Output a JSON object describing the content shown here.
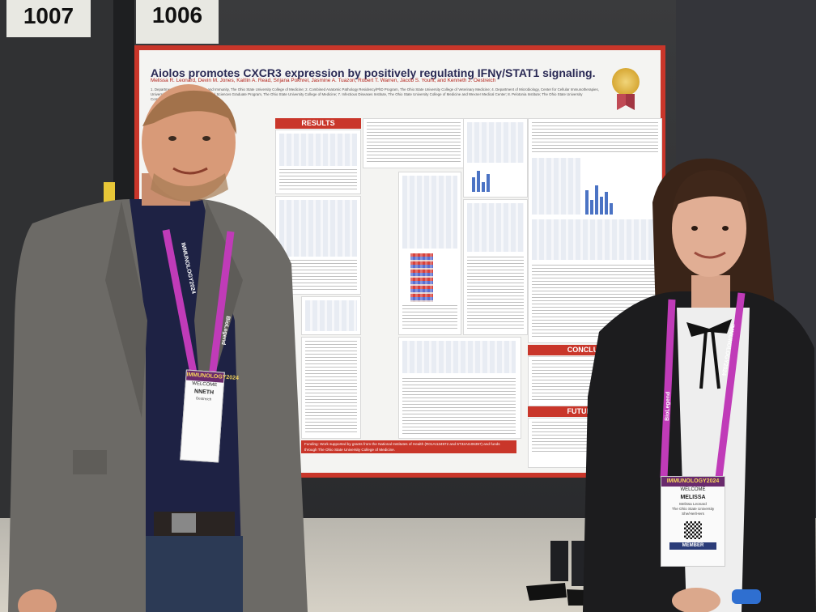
{
  "scene": {
    "board_numbers": [
      "1007",
      "1006"
    ]
  },
  "poster": {
    "title": "Aiolos promotes CXCR3 expression by positively regulating IFNγ/STAT1 signaling.",
    "authors": "Melissa R. Leonard, Devin M. Jones, Kaitlin A. Read, Srijana Pokhrel, Jasmine A. Tuazon, Robert T. Warren, Jacob S. Yount, and Kenneth J. Oestreich",
    "affiliations": "1. Department of Microbial Infection and Immunity, The Ohio State University College of Medicine; 2. Combined Anatomic Pathology Residency/PhD Program, The Ohio State University College of Veterinary Medicine; 4. Department of Microbiology, Center for Cellular Immunotherapies, University of Pennsylvania; 5. Biomedical Sciences Graduate Program, The Ohio State University College of Medicine; 7. Infectious Diseases Institute, The Ohio State University College of Medicine and Wexner Medical Center; 8. Pelotonia Institute; The Ohio State University Comprehensive Cancer Center",
    "sections": {
      "results": "RESULTS",
      "conclusions": "CONCLUSIONS",
      "future": "FUTURE DIREC"
    },
    "funding": "Funding: Work supported by grants from the National Institutes of Health (R01AI134972 and 5T32AI106397) and funds through The Ohio State University College of Medicine."
  },
  "badges": {
    "left": {
      "banner": "IMMUNOLOGY2024",
      "welcome": "WELCOME",
      "name": "NNETH",
      "affiliation": "Oestreich"
    },
    "right": {
      "banner": "IMMUNOLOGY2024",
      "welcome": "WELCOME",
      "first_name": "MELISSA",
      "full_name": "Melissa Leonard",
      "affiliation": "The Ohio State University",
      "pronouns": "She/Her/Hers",
      "role": "MEMBER"
    }
  },
  "lanyards": {
    "text": "IMMUNOLOGY2024",
    "sponsor": "BioLegend",
    "color": "#c03bb8"
  },
  "colors": {
    "poster_frame": "#c9362a",
    "blazer": "#6c6a66",
    "shirt": "#1e2244",
    "cardigan": "#1c1c1e"
  }
}
